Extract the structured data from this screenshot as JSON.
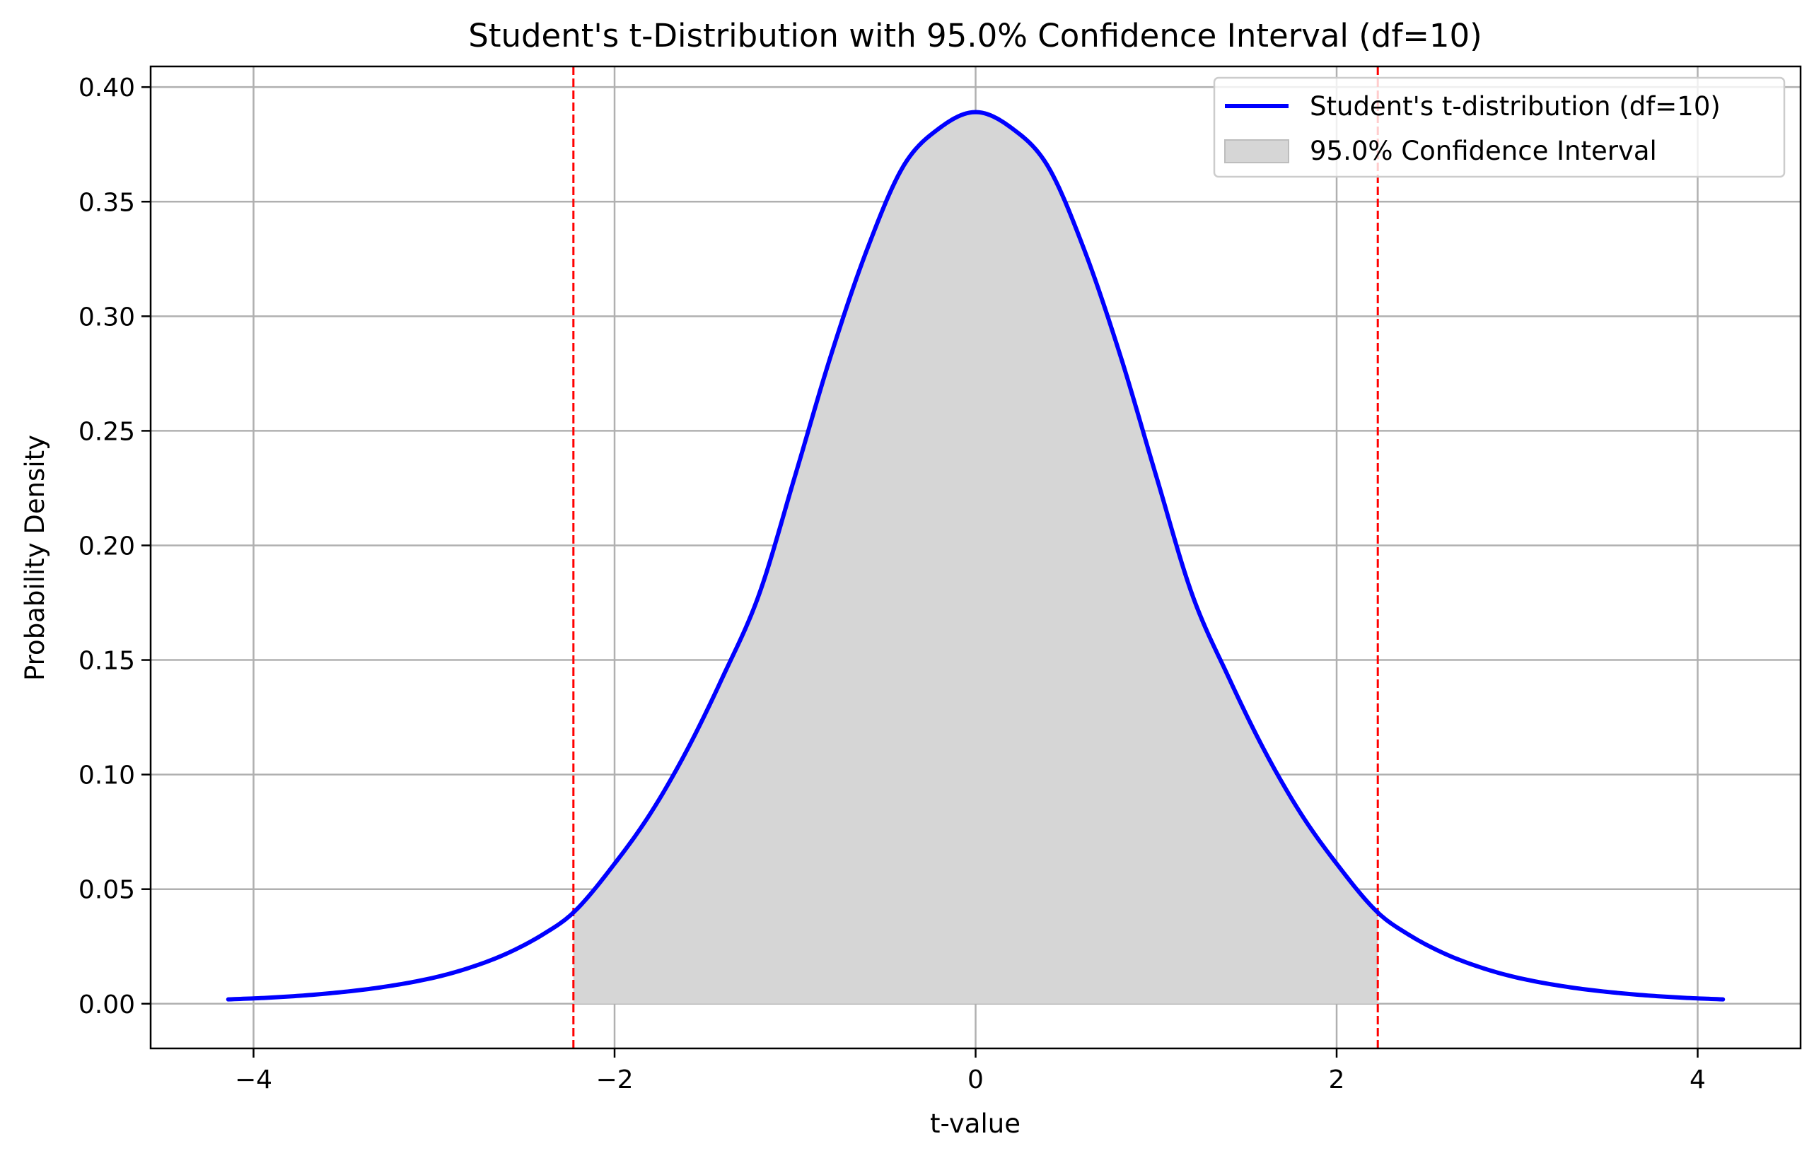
{
  "chart_data": {
    "type": "line",
    "title": "Student's t-Distribution with 95.0% Confidence Interval (df=10)",
    "xlabel": "t-value",
    "ylabel": "Probability Density",
    "xlim": [
      -4.57,
      4.57
    ],
    "ylim": [
      -0.0195,
      0.409
    ],
    "x_ticks": [
      -4,
      -2,
      0,
      2,
      4
    ],
    "x_tick_labels": [
      "−4",
      "−2",
      "0",
      "2",
      "4"
    ],
    "y_ticks": [
      0.0,
      0.05,
      0.1,
      0.15,
      0.2,
      0.25,
      0.3,
      0.35,
      0.4
    ],
    "y_tick_labels": [
      "0.00",
      "0.05",
      "0.10",
      "0.15",
      "0.20",
      "0.25",
      "0.30",
      "0.35",
      "0.40"
    ],
    "grid": true,
    "legend_position": "top-right",
    "series": [
      {
        "name": "Student's t-distribution (df=10)",
        "color": "#0000ff",
        "x": [
          -4.14,
          -3.9,
          -3.6,
          -3.3,
          -3.0,
          -2.8,
          -2.6,
          -2.4,
          -2.228,
          -2.0,
          -1.8,
          -1.6,
          -1.4,
          -1.2,
          -1.0,
          -0.8,
          -0.6,
          -0.4,
          -0.2,
          0.0,
          0.2,
          0.4,
          0.6,
          0.8,
          1.0,
          1.2,
          1.4,
          1.6,
          1.8,
          2.0,
          2.228,
          2.4,
          2.6,
          2.8,
          3.0,
          3.3,
          3.6,
          3.9,
          4.14
        ],
        "y": [
          0.0019,
          0.0027,
          0.0044,
          0.0071,
          0.0114,
          0.0158,
          0.0218,
          0.0301,
          0.0398,
          0.0611,
          0.0832,
          0.1105,
          0.1427,
          0.1785,
          0.2304,
          0.2833,
          0.3294,
          0.3655,
          0.3821,
          0.3891,
          0.3821,
          0.3655,
          0.3294,
          0.2833,
          0.2304,
          0.1785,
          0.1427,
          0.1105,
          0.0832,
          0.0611,
          0.0398,
          0.0301,
          0.0218,
          0.0158,
          0.0114,
          0.0071,
          0.0044,
          0.0027,
          0.0019
        ]
      }
    ],
    "confidence_interval": {
      "name": "95.0% Confidence Interval",
      "lower": -2.228,
      "upper": 2.228,
      "fill_color": "#d6d6d6",
      "line_color": "#ff0000"
    }
  }
}
